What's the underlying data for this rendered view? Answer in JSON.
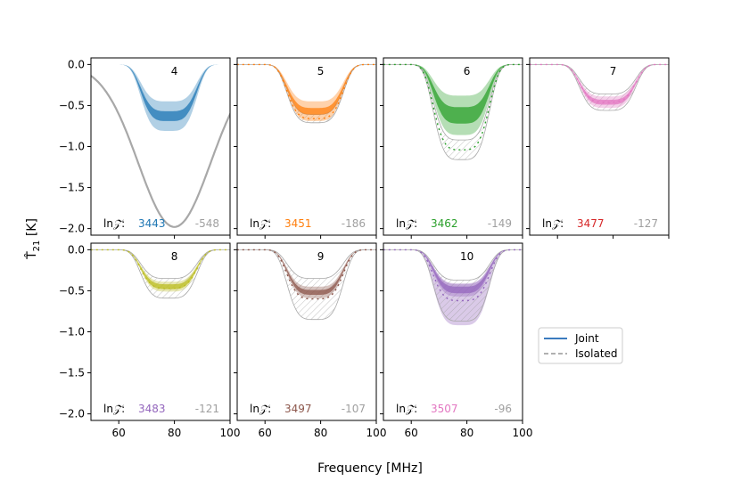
{
  "figure": {
    "ylabel_symbol": "T̂",
    "ylabel_sub": "21",
    "ylabel_unit": " [K]",
    "xlabel": "Frequency [MHz]",
    "evidence_label_main": "ln",
    "evidence_label_sym": "𝒵",
    "evidence_label_colon": ":"
  },
  "legend": {
    "joint": "Joint",
    "isolated": "Isolated"
  },
  "colors": {
    "grey": "#a8a8a8",
    "joint_line": "#3b7bbf",
    "isolated_line": "#b0b0b0"
  },
  "chart_data": {
    "type": "line",
    "x_range": [
      50,
      100
    ],
    "y_range_row1": [
      -2.08,
      0.08
    ],
    "y_range_row2": [
      -2.08,
      0.08
    ],
    "x_ticks": [
      60,
      80,
      100
    ],
    "x_tick_labels": [
      "60",
      "80",
      "100"
    ],
    "y_ticks": [
      0.0,
      -0.5,
      -1.0,
      -1.5,
      -2.0
    ],
    "y_tick_labels": [
      "0.0",
      "−0.5",
      "−1.0",
      "−1.5",
      "−2.0"
    ],
    "series_note": "Each panel: joint-fit absorption trough posterior (shaded bands) and isolated-fit trough (grey hatched/dashed).",
    "panels": [
      {
        "id": "4",
        "color": "#1f77b4",
        "joint_depth": 0.63,
        "joint_sigma": [
          0.06,
          0.18
        ],
        "iso_depth": 1.98,
        "iso_type": "gauss",
        "iso_center": 80,
        "iso_width": 13,
        "lnZ_joint": "3443",
        "lnZ_iso": "-548",
        "lnZ_color": "#1f77b4"
      },
      {
        "id": "5",
        "color": "#ff7f0e",
        "joint_depth": 0.57,
        "joint_sigma": [
          0.04,
          0.12
        ],
        "iso_depth": 0.66,
        "iso_type": "flat",
        "iso_band": 0.05,
        "lnZ_joint": "3451",
        "lnZ_iso": "-186",
        "lnZ_color": "#ff7f0e"
      },
      {
        "id": "6",
        "color": "#2ca02c",
        "joint_depth": 0.62,
        "joint_sigma": [
          0.1,
          0.24
        ],
        "iso_depth": 1.04,
        "iso_type": "flat",
        "iso_band": 0.12,
        "lnZ_joint": "3462",
        "lnZ_iso": "-149",
        "lnZ_color": "#2ca02c"
      },
      {
        "id": "7",
        "color": "#e377c2",
        "joint_depth": 0.46,
        "joint_sigma": [
          0.03,
          0.07
        ],
        "iso_depth": 0.46,
        "iso_type": "flat",
        "iso_band": 0.1,
        "lnZ_joint": "3477",
        "lnZ_iso": "-127",
        "lnZ_color": "#d62728"
      },
      {
        "id": "8",
        "color": "#bcbd22",
        "joint_depth": 0.45,
        "joint_sigma": [
          0.03,
          0.06
        ],
        "iso_depth": 0.47,
        "iso_type": "flat",
        "iso_band": 0.12,
        "lnZ_joint": "3483",
        "lnZ_iso": "-121",
        "lnZ_color": "#9467bd"
      },
      {
        "id": "9",
        "color": "#8c564b",
        "joint_depth": 0.52,
        "joint_sigma": [
          0.03,
          0.07
        ],
        "iso_depth": 0.6,
        "iso_type": "flat",
        "iso_band": 0.25,
        "lnZ_joint": "3497",
        "lnZ_iso": "-107",
        "lnZ_color": "#8c564b"
      },
      {
        "id": "10",
        "color": "#9467bd",
        "joint_depth": 0.49,
        "joint_sigma": [
          0.04,
          0.08
        ],
        "iso_depth": 0.62,
        "iso_type": "flat",
        "iso_band": 0.25,
        "purple_outer": 0.92,
        "lnZ_joint": "3507",
        "lnZ_iso": "-96",
        "lnZ_color": "#e377c2"
      }
    ]
  }
}
